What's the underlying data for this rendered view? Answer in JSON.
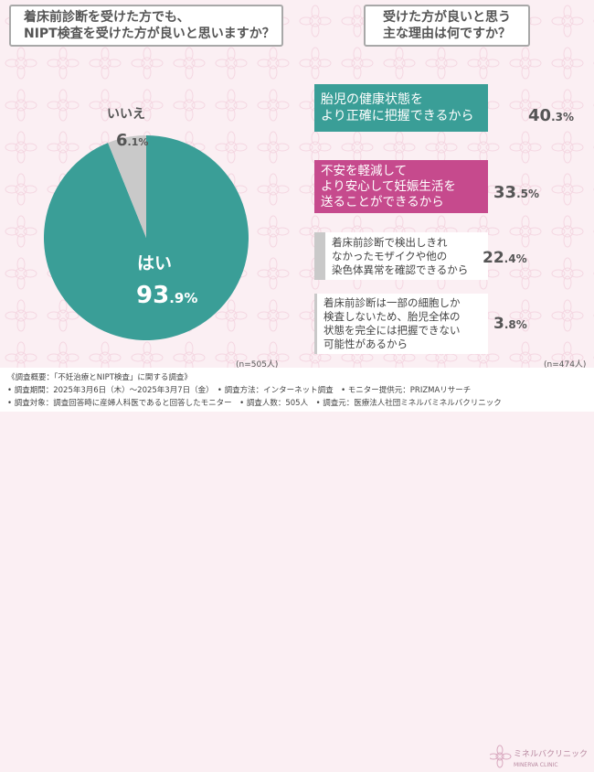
{
  "question_left": [
    "着床前診断を受けた方でも、",
    "NIPT検査を受けた方が良いと思いますか？"
  ],
  "question_right": [
    "受けた方が良いと思う",
    "主な理由は何ですか？"
  ],
  "colors": {
    "teal": "#3a9e97",
    "magenta": "#c64a8d",
    "gray": "#c9c9c9",
    "background": "#fbeff3"
  },
  "chart_data": [
    {
      "type": "pie",
      "categories": [
        "はい",
        "いいえ"
      ],
      "values": [
        93.9,
        6.1
      ],
      "percent_labels": [
        {
          "int": "93",
          "dec": ".9%"
        },
        {
          "int": "6",
          "dec": ".1%"
        }
      ],
      "n_label": "(n=505人)"
    },
    {
      "type": "bar",
      "categories": [
        [
          "胎児の健康状態を",
          "より正確に把握できるから"
        ],
        [
          "不安を軽減して",
          "より安心して妊娠生活を",
          "送ることができるから"
        ],
        [
          "着床前診断で検出しきれ",
          "なかったモザイクや他の",
          "染色体異常を確認できるから"
        ],
        [
          "着床前診断は一部の細胞しか",
          "検査しないため、胎児全体の",
          "状態を完全には把握できない",
          "可能性があるから"
        ]
      ],
      "values": [
        40.3,
        33.5,
        22.4,
        3.8
      ],
      "percent_labels": [
        {
          "int": "40",
          "dec": ".3%"
        },
        {
          "int": "33",
          "dec": ".5%"
        },
        {
          "int": "22",
          "dec": ".4%"
        },
        {
          "int": "3",
          "dec": ".8%"
        }
      ],
      "n_label": "(n=474人)"
    }
  ],
  "footer": {
    "lines": [
      "《調査概要：「不妊治療とNIPT検査」に関する調査》",
      "• 調査期間：2025年3月6日（木）〜2025年3月7日（金）　• 調査方法：インターネット調査　• モニター提供元：PRIZMAリサーチ",
      "• 調査対象：調査回答時に産婦人科医であると回答したモニター　• 調査人数：505人　• 調査元：医療法人社団ミネルバミネルバクリニック"
    ],
    "logo_text": "ミネルバクリニック",
    "logo_sub": "MINERVA CLINIC"
  }
}
